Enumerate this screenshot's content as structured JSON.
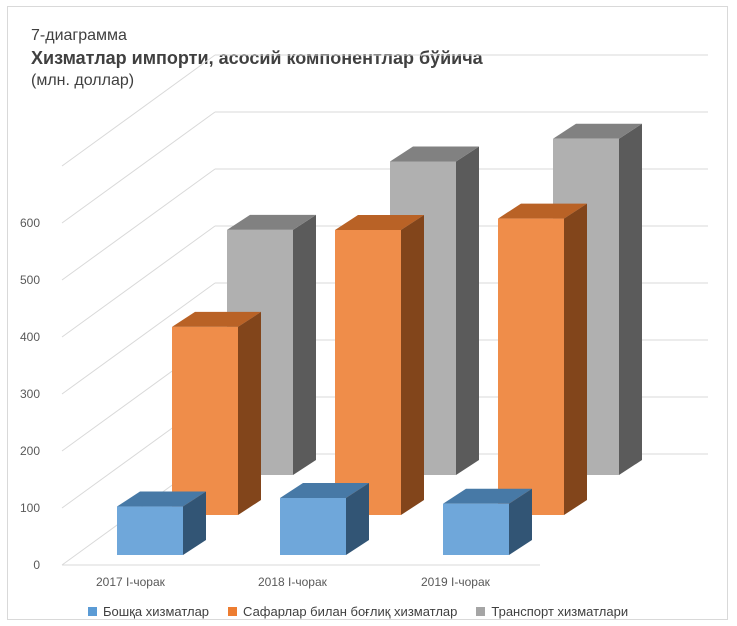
{
  "chart_data": {
    "type": "bar",
    "subtitle": "7-диаграмма",
    "title": "Хизматлар импорти, асосий компонентлар бўйича",
    "unit": "(млн. доллар)",
    "categories": [
      "2017 I-чорак",
      "2018 I-чорак",
      "2019 I-чорак"
    ],
    "ylim": [
      0,
      700
    ],
    "yticks": [
      0,
      100,
      200,
      300,
      400,
      500,
      600
    ],
    "grid": true,
    "legend_position": "bottom",
    "series": [
      {
        "name": "Бошқа хизматлар",
        "color": "#5b9bd5",
        "values": [
          85,
          100,
          90
        ]
      },
      {
        "name": "Сафарлар билан боғлиқ хизматлар",
        "color": "#ed7d31",
        "values": [
          330,
          500,
          520
        ]
      },
      {
        "name": "Транспорт хизматлари",
        "color": "#a5a5a5",
        "values": [
          430,
          550,
          590
        ]
      }
    ]
  }
}
